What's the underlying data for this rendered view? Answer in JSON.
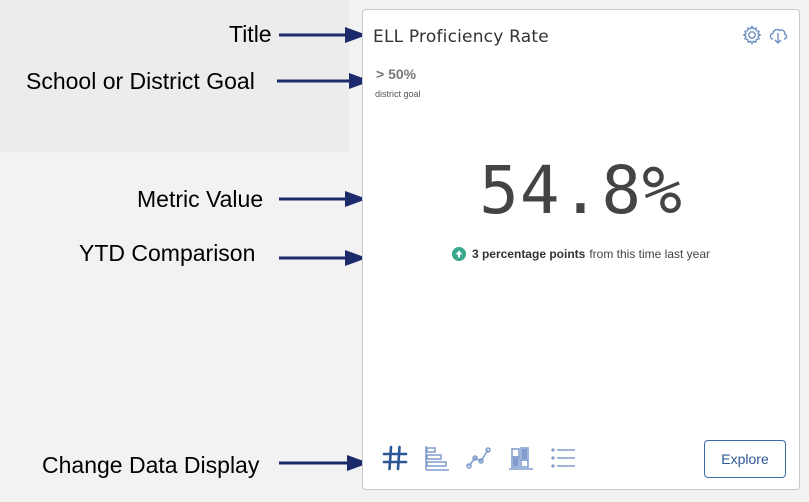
{
  "callouts": {
    "title": "Title",
    "goal": "School or District Goal",
    "metric": "Metric Value",
    "ytd": "YTD Comparison",
    "display": "Change Data Display"
  },
  "card": {
    "title": "ELL Proficiency Rate",
    "goal_value": "> 50%",
    "goal_label": "district goal",
    "metric_value": "54.8%",
    "ytd_change": "3 percentage points",
    "ytd_text": "from this time last year",
    "explore_label": "Explore"
  },
  "icons": {
    "settings": "gear-icon",
    "download": "cloud-download-icon",
    "display_options": [
      "number-icon",
      "bar-chart-icon",
      "line-chart-icon",
      "stacked-chart-icon",
      "list-icon"
    ]
  },
  "colors": {
    "accent": "#3d6aa8",
    "arrow": "#1c2a6b",
    "up": "#3aa88d"
  }
}
